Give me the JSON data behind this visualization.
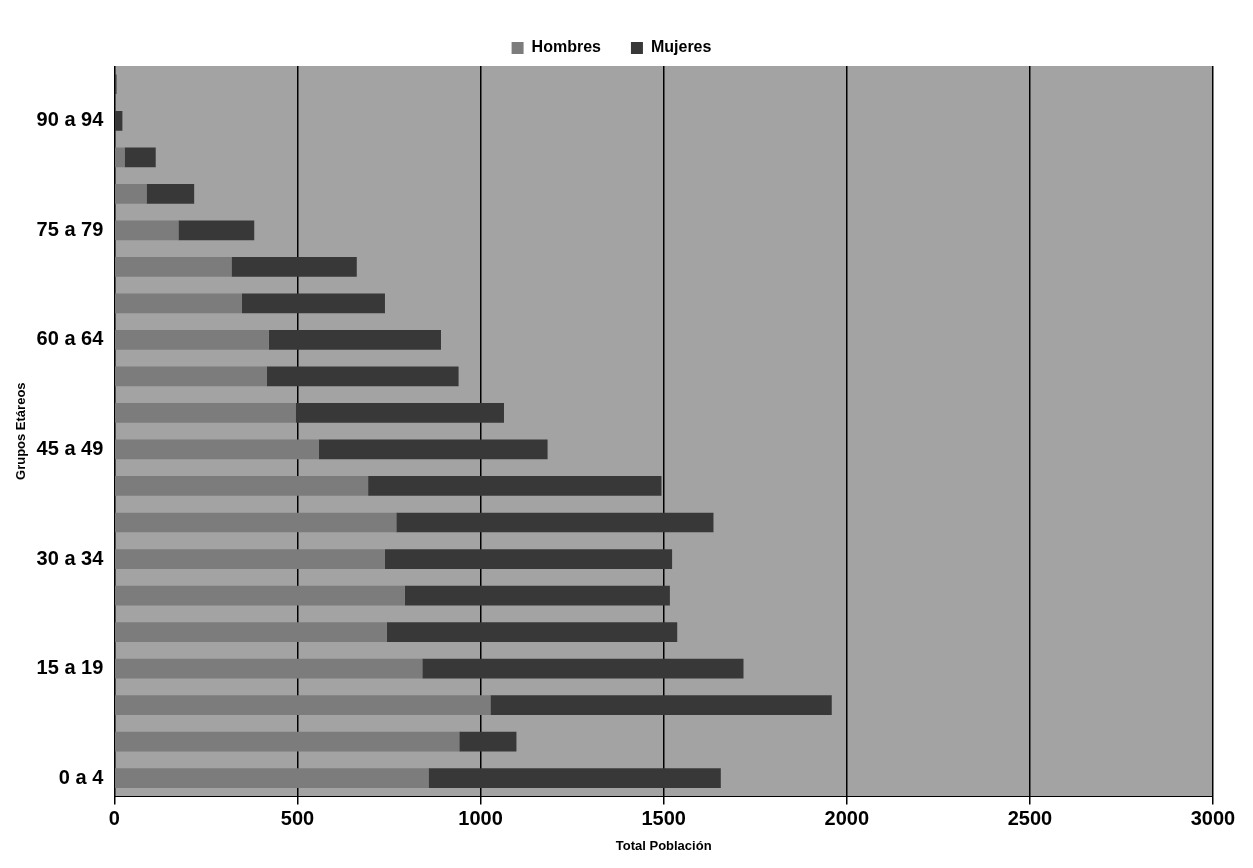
{
  "chart_data": {
    "type": "bar",
    "orientation": "horizontal",
    "stacked": true,
    "categories": [
      null,
      "90 a 94",
      null,
      null,
      "75 a 79",
      null,
      null,
      "60 a 64",
      null,
      null,
      "45 a 49",
      null,
      null,
      "30 a 34",
      null,
      null,
      "15 a 19",
      null,
      null,
      "0 a 4"
    ],
    "series": [
      {
        "name": "Hombres",
        "color": "#7c7c7c",
        "values": [
          0,
          null,
          28,
          88,
          175,
          320,
          348,
          422,
          416,
          495,
          558,
          693,
          770,
          739,
          793,
          744,
          841,
          1027,
          942,
          858
        ]
      },
      {
        "name": "Mujeres",
        "color": "#383838",
        "values": [
          6,
          22,
          85,
          130,
          207,
          342,
          391,
          470,
          524,
          569,
          625,
          801,
          866,
          784,
          724,
          793,
          877,
          932,
          156,
          798
        ]
      }
    ],
    "xlim": [
      0,
      3000
    ],
    "xticks": [
      0,
      500,
      1000,
      1500,
      2000,
      2500,
      3000
    ],
    "xlabel": "Total Población",
    "ylabel": "Grupos Etáreos",
    "grid": "x",
    "legend": "top"
  }
}
